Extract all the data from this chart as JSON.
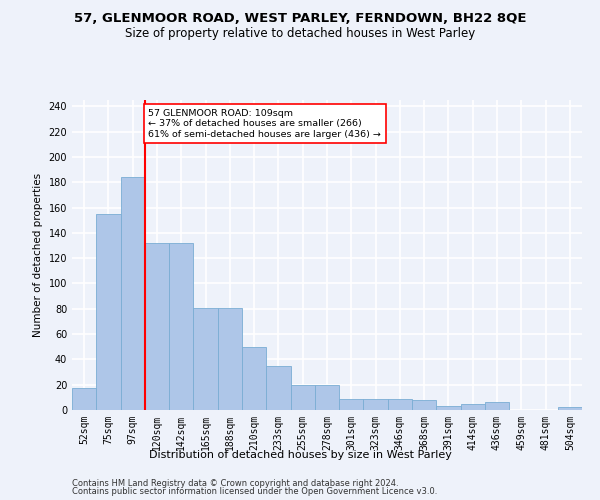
{
  "title_line1": "57, GLENMOOR ROAD, WEST PARLEY, FERNDOWN, BH22 8QE",
  "title_line2": "Size of property relative to detached houses in West Parley",
  "xlabel": "Distribution of detached houses by size in West Parley",
  "ylabel": "Number of detached properties",
  "categories": [
    "52sqm",
    "75sqm",
    "97sqm",
    "120sqm",
    "142sqm",
    "165sqm",
    "188sqm",
    "210sqm",
    "233sqm",
    "255sqm",
    "278sqm",
    "301sqm",
    "323sqm",
    "346sqm",
    "368sqm",
    "391sqm",
    "414sqm",
    "436sqm",
    "459sqm",
    "481sqm",
    "504sqm"
  ],
  "values": [
    17,
    155,
    184,
    132,
    132,
    81,
    81,
    50,
    35,
    20,
    20,
    9,
    9,
    9,
    8,
    3,
    5,
    6,
    0,
    0,
    2
  ],
  "bar_color": "#aec6e8",
  "bar_edge_color": "#7aadd4",
  "vline_x": 2.5,
  "vline_color": "red",
  "annotation_text": "57 GLENMOOR ROAD: 109sqm\n← 37% of detached houses are smaller (266)\n61% of semi-detached houses are larger (436) →",
  "annotation_box_color": "white",
  "annotation_box_edge_color": "red",
  "ylim": [
    0,
    245
  ],
  "yticks": [
    0,
    20,
    40,
    60,
    80,
    100,
    120,
    140,
    160,
    180,
    200,
    220,
    240
  ],
  "footer_line1": "Contains HM Land Registry data © Crown copyright and database right 2024.",
  "footer_line2": "Contains public sector information licensed under the Open Government Licence v3.0.",
  "background_color": "#eef2fa",
  "grid_color": "#ffffff",
  "title_fontsize": 9.5,
  "subtitle_fontsize": 8.5,
  "axis_label_fontsize": 7.5,
  "tick_fontsize": 7,
  "footer_fontsize": 6
}
